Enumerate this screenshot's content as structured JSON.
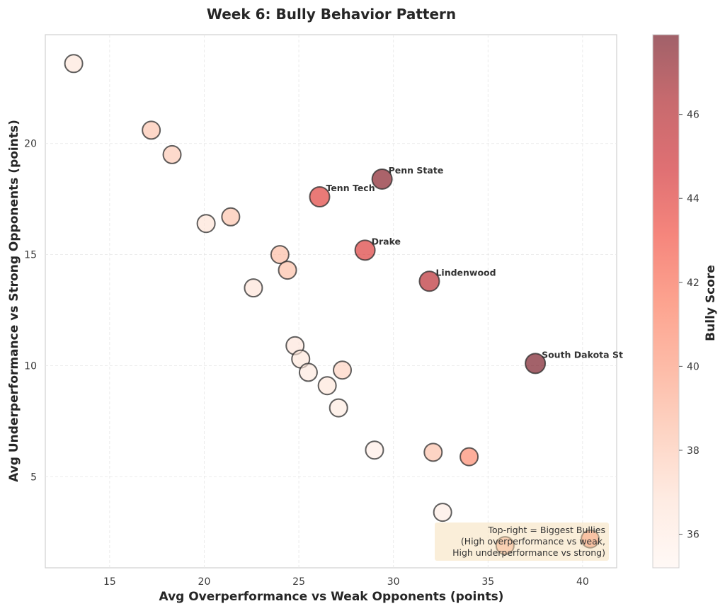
{
  "chart_data": {
    "type": "scatter",
    "title": "Week 6: Bully Behavior Pattern",
    "xlabel": "Avg Overperformance vs Weak Opponents (points)",
    "ylabel": "Avg Underperformance vs Strong Opponents (points)",
    "xlim": [
      11.6,
      41.8
    ],
    "ylim": [
      0.9,
      24.9
    ],
    "xticks": [
      15,
      20,
      25,
      30,
      35,
      40
    ],
    "yticks": [
      5,
      10,
      15,
      20
    ],
    "grid": true,
    "colorbar": {
      "label": "Bully Score",
      "range": [
        35.2,
        47.9
      ],
      "ticks": [
        36,
        38,
        40,
        42,
        44,
        46
      ],
      "colormap": "Reds",
      "placement": "right"
    },
    "annotation": {
      "lines": [
        "Top-right = Biggest Bullies",
        "(High overperformance vs weak,",
        "High underperformance vs strong)"
      ],
      "placement": "bottom-right"
    },
    "points": [
      {
        "x": 13.1,
        "y": 23.6,
        "score": 36.5,
        "label": ""
      },
      {
        "x": 17.2,
        "y": 20.6,
        "score": 38.2,
        "label": ""
      },
      {
        "x": 18.3,
        "y": 19.5,
        "score": 38.0,
        "label": ""
      },
      {
        "x": 20.1,
        "y": 16.4,
        "score": 36.8,
        "label": ""
      },
      {
        "x": 21.4,
        "y": 16.7,
        "score": 38.3,
        "label": ""
      },
      {
        "x": 24.0,
        "y": 15.0,
        "score": 38.6,
        "label": ""
      },
      {
        "x": 24.4,
        "y": 14.3,
        "score": 38.5,
        "label": ""
      },
      {
        "x": 22.6,
        "y": 13.5,
        "score": 36.7,
        "label": ""
      },
      {
        "x": 26.1,
        "y": 17.6,
        "score": 44.0,
        "label": "Tenn Tech"
      },
      {
        "x": 29.4,
        "y": 18.4,
        "score": 47.5,
        "label": "Penn State"
      },
      {
        "x": 28.5,
        "y": 15.2,
        "score": 44.2,
        "label": "Drake"
      },
      {
        "x": 31.9,
        "y": 13.8,
        "score": 45.8,
        "label": "Lindenwood"
      },
      {
        "x": 37.5,
        "y": 10.1,
        "score": 47.8,
        "label": "South Dakota St"
      },
      {
        "x": 24.8,
        "y": 10.9,
        "score": 36.6,
        "label": ""
      },
      {
        "x": 25.1,
        "y": 10.3,
        "score": 36.4,
        "label": ""
      },
      {
        "x": 25.5,
        "y": 9.7,
        "score": 36.3,
        "label": ""
      },
      {
        "x": 26.5,
        "y": 9.1,
        "score": 36.5,
        "label": ""
      },
      {
        "x": 27.3,
        "y": 9.8,
        "score": 37.6,
        "label": ""
      },
      {
        "x": 27.1,
        "y": 8.1,
        "score": 36.2,
        "label": ""
      },
      {
        "x": 29.0,
        "y": 6.2,
        "score": 35.9,
        "label": ""
      },
      {
        "x": 32.1,
        "y": 6.1,
        "score": 38.4,
        "label": ""
      },
      {
        "x": 34.0,
        "y": 5.9,
        "score": 40.8,
        "label": ""
      },
      {
        "x": 32.6,
        "y": 3.4,
        "score": 36.0,
        "label": ""
      },
      {
        "x": 35.9,
        "y": 1.9,
        "score": 39.5,
        "label": ""
      },
      {
        "x": 40.4,
        "y": 2.2,
        "score": 41.2,
        "label": ""
      }
    ]
  }
}
